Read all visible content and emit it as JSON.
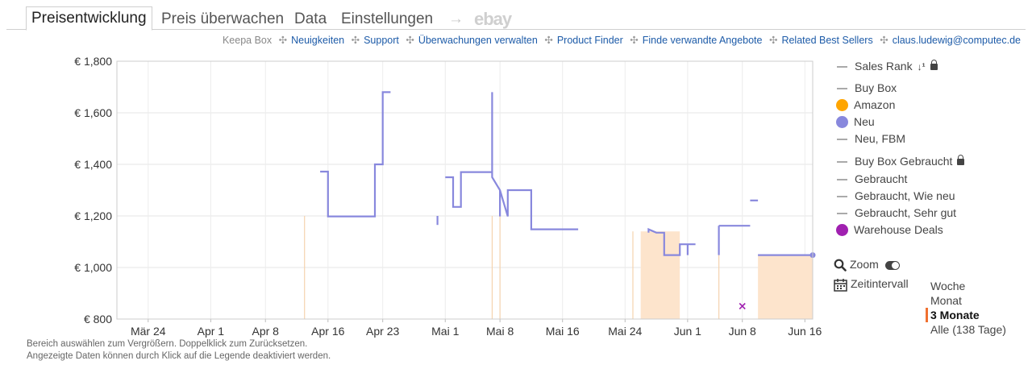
{
  "tabs": {
    "price_history": "Preisentwicklung",
    "track": "Preis überwachen",
    "data": "Data",
    "settings": "Einstellungen",
    "arrow": "→",
    "ebay": "ebay"
  },
  "links": {
    "keepa_box": "Keepa Box",
    "items": [
      "Neuigkeiten",
      "Support",
      "Überwachungen verwalten",
      "Product Finder",
      "Finde verwandte Angebote",
      "Related Best Sellers",
      "claus.ludewig@computec.de"
    ]
  },
  "legend": {
    "sales_rank": "Sales Rank",
    "buy_box": "Buy Box",
    "amazon": "Amazon",
    "neu": "Neu",
    "neu_fbm": "Neu, FBM",
    "buy_box_used": "Buy Box Gebraucht",
    "used": "Gebraucht",
    "used_like_new": "Gebraucht, Wie neu",
    "used_very_good": "Gebraucht, Sehr gut",
    "warehouse": "Warehouse Deals",
    "zoom": "Zoom",
    "time_interval": "Zeitintervall",
    "ranges": [
      "Woche",
      "Monat",
      "3 Monate",
      "Alle (138 Tage)"
    ],
    "active_range": "3 Monate"
  },
  "colors": {
    "amazon": "#ffa500",
    "neu": "#8888dd",
    "warehouse": "#a020b0",
    "shade": "#fde4cc",
    "link": "#1d5ba8"
  },
  "footer": {
    "line1": "Bereich auswählen zum Vergrößern. Doppelklick zum Zurücksetzen.",
    "line2": "Angezeigte Daten können durch Klick auf die Legende deaktiviert werden."
  },
  "chart_data": {
    "type": "line",
    "x_axis": {
      "type": "date",
      "start": "2024-03-20",
      "end": "2024-06-17",
      "ticks": [
        {
          "date": "2024-03-24",
          "label": "Mär 24"
        },
        {
          "date": "2024-04-01",
          "label": "Apr 1"
        },
        {
          "date": "2024-04-08",
          "label": "Apr 8"
        },
        {
          "date": "2024-04-16",
          "label": "Apr 16"
        },
        {
          "date": "2024-04-23",
          "label": "Apr 23"
        },
        {
          "date": "2024-05-01",
          "label": "Mai 1"
        },
        {
          "date": "2024-05-08",
          "label": "Mai 8"
        },
        {
          "date": "2024-05-16",
          "label": "Mai 16"
        },
        {
          "date": "2024-05-24",
          "label": "Mai 24"
        },
        {
          "date": "2024-06-01",
          "label": "Jun 1"
        },
        {
          "date": "2024-06-08",
          "label": "Jun 8"
        },
        {
          "date": "2024-06-16",
          "label": "Jun 16"
        }
      ]
    },
    "y_axis": {
      "ylim": [
        800,
        1800
      ],
      "ticks": [
        {
          "value": 800,
          "label": "€ 800"
        },
        {
          "value": 1000,
          "label": "€ 1,000"
        },
        {
          "value": 1200,
          "label": "€ 1,200"
        },
        {
          "value": 1400,
          "label": "€ 1,400"
        },
        {
          "value": 1600,
          "label": "€ 1,600"
        },
        {
          "value": 1800,
          "label": "€ 1,800"
        }
      ]
    },
    "grid": true,
    "legend_position": "right",
    "series": [
      {
        "name": "Neu",
        "color": "#8888dd",
        "segments": [
          [
            [
              "2024-04-15",
              1372
            ],
            [
              "2024-04-16",
              1372
            ],
            [
              "2024-04-16",
              1198
            ],
            [
              "2024-04-22",
              1198
            ],
            [
              "2024-04-22",
              1400
            ],
            [
              "2024-04-23",
              1400
            ],
            [
              "2024-04-23",
              1680
            ],
            [
              "2024-04-24",
              1680
            ]
          ],
          [
            [
              "2024-04-30",
              1165
            ],
            [
              "2024-04-30",
              1200
            ]
          ],
          [
            [
              "2024-05-01",
              1350
            ],
            [
              "2024-05-02",
              1350
            ],
            [
              "2024-05-02",
              1235
            ],
            [
              "2024-05-03",
              1235
            ],
            [
              "2024-05-03",
              1370
            ],
            [
              "2024-05-07",
              1370
            ],
            [
              "2024-05-07",
              1680
            ],
            [
              "2024-05-07",
              1350
            ],
            [
              "2024-05-08",
              1300
            ],
            [
              "2024-05-08",
              1198
            ],
            [
              "2024-05-08",
              1300
            ],
            [
              "2024-05-09",
              1198
            ],
            [
              "2024-05-09",
              1300
            ],
            [
              "2024-05-12",
              1300
            ],
            [
              "2024-05-12",
              1148
            ],
            [
              "2024-05-18",
              1148
            ]
          ],
          [
            [
              "2024-05-27",
              1135
            ],
            [
              "2024-05-27",
              1148
            ],
            [
              "2024-05-28",
              1135
            ],
            [
              "2024-05-29",
              1135
            ],
            [
              "2024-05-29",
              1048
            ],
            [
              "2024-05-31",
              1048
            ],
            [
              "2024-05-31",
              1090
            ],
            [
              "2024-06-01",
              1090
            ],
            [
              "2024-06-01",
              1048
            ],
            [
              "2024-06-01",
              1090
            ],
            [
              "2024-06-02",
              1090
            ]
          ],
          [
            [
              "2024-06-05",
              1162
            ],
            [
              "2024-06-09",
              1162
            ]
          ],
          [
            [
              "2024-06-05",
              1162
            ],
            [
              "2024-06-05",
              1048
            ]
          ],
          [
            [
              "2024-06-09",
              1260
            ],
            [
              "2024-06-10",
              1260
            ]
          ],
          [
            [
              "2024-06-10",
              1048
            ],
            [
              "2024-06-17",
              1048
            ]
          ]
        ],
        "points": [
          {
            "date": "2024-06-17",
            "value": 1048
          }
        ]
      },
      {
        "name": "Warehouse Deals",
        "color": "#a020b0",
        "points": [
          {
            "date": "2024-06-08",
            "value": 850
          }
        ]
      }
    ],
    "shaded_ranges": [
      {
        "from": "2024-05-26",
        "to": "2024-05-31",
        "top": 1140
      },
      {
        "from": "2024-06-10",
        "to": "2024-06-17",
        "top": 1048
      }
    ],
    "markers": [
      {
        "date": "2024-04-13",
        "value": 1200
      },
      {
        "date": "2024-05-07",
        "value": 1200
      },
      {
        "date": "2024-05-08",
        "value": 1200
      },
      {
        "date": "2024-05-25",
        "value": 1140
      },
      {
        "date": "2024-06-05",
        "value": 1160
      }
    ]
  }
}
